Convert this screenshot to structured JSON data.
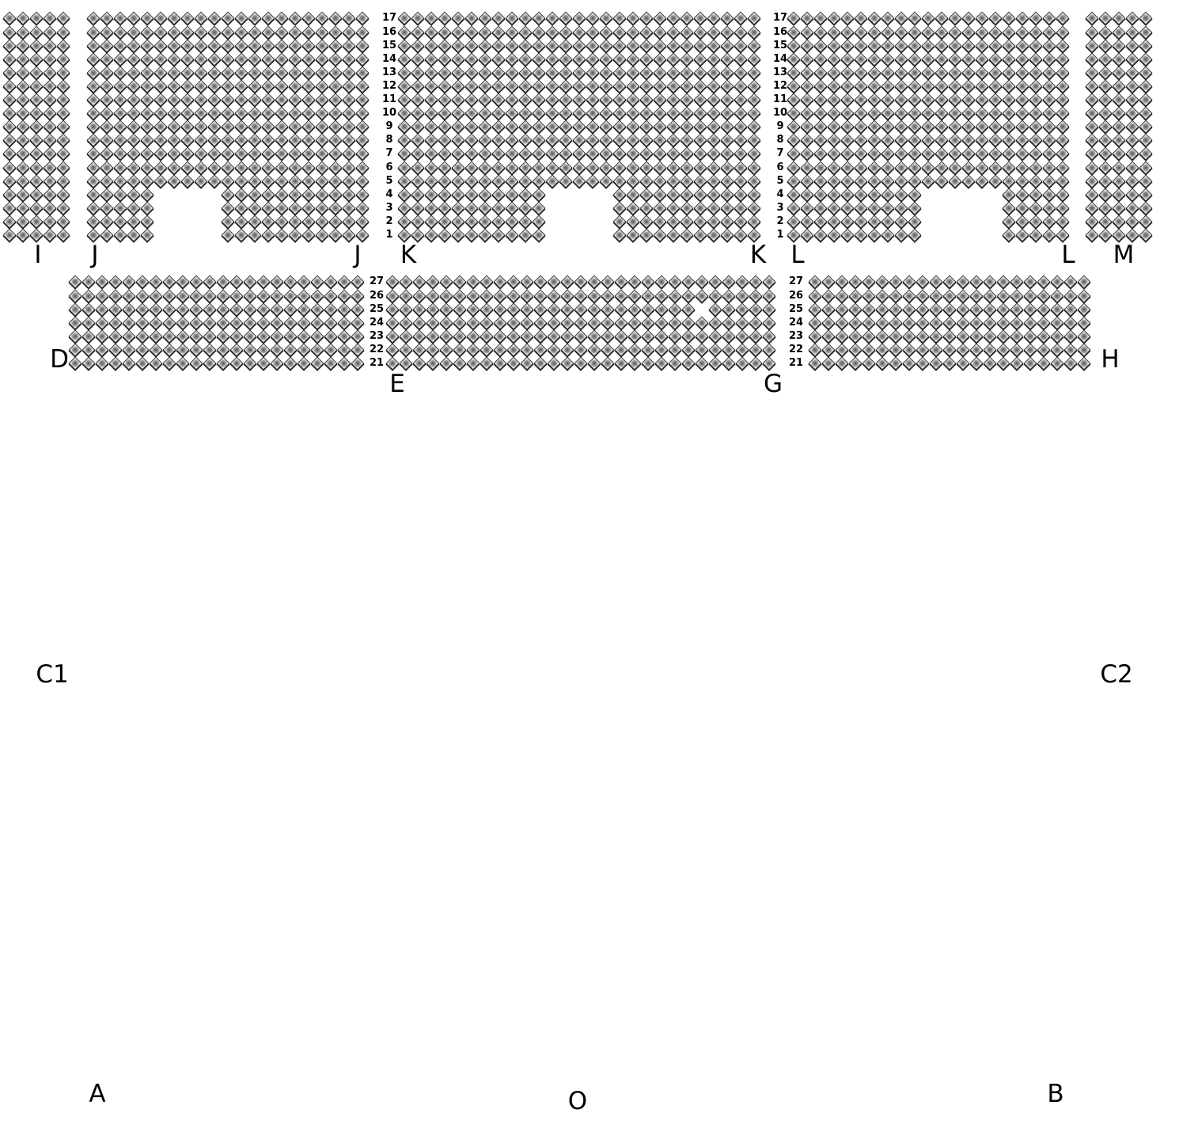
{
  "seat_icon": "diamond-seat-icon",
  "seat_color": "#8a8a8a",
  "upper_rows": [
    1,
    2,
    3,
    4,
    5,
    6,
    7,
    8,
    9,
    10,
    11,
    12,
    13,
    14,
    15,
    16,
    17
  ],
  "lower_rows": [
    21,
    22,
    23,
    24,
    25,
    26,
    27
  ],
  "upper_row_labels": [
    "1",
    "2",
    "3",
    "4",
    "5",
    "6",
    "7",
    "8",
    "9",
    "10",
    "11",
    "12",
    "13",
    "14",
    "15",
    "16",
    "17"
  ],
  "lower_row_labels": [
    "21",
    "22",
    "23",
    "24",
    "25",
    "26",
    "27"
  ],
  "seat_blocks": [
    {
      "section": "I",
      "rows": "upper",
      "seats_per_row": 5,
      "missing": []
    },
    {
      "section": "J",
      "rows": "upper",
      "seats_per_row": 21,
      "missing": [
        {
          "rows": [
            1,
            2,
            3,
            4
          ],
          "seats": [
            6,
            7,
            8,
            9,
            10
          ]
        }
      ]
    },
    {
      "section": "K",
      "rows": "upper",
      "seats_per_row": 27,
      "missing": [
        {
          "rows": [
            1,
            2,
            3,
            4
          ],
          "seats": [
            12,
            13,
            14,
            15,
            16
          ]
        }
      ]
    },
    {
      "section": "L",
      "rows": "upper",
      "seats_per_row": 21,
      "missing": [
        {
          "rows": [
            1,
            2,
            3,
            4
          ],
          "seats": [
            11,
            12,
            13,
            14,
            15,
            16
          ]
        }
      ]
    },
    {
      "section": "M",
      "rows": "upper",
      "seats_per_row": 5,
      "missing": []
    },
    {
      "section": "D",
      "rows": "lower",
      "seats_per_row": 22,
      "missing": []
    },
    {
      "section": "E-G",
      "rows": "lower",
      "seats_per_row": 29,
      "missing": [
        {
          "rows": [
            25
          ],
          "seats": [
            24
          ]
        }
      ]
    },
    {
      "section": "H",
      "rows": "lower",
      "seats_per_row": 21,
      "missing": []
    }
  ],
  "section_labels": [
    "I",
    "J",
    "J",
    "K",
    "K",
    "L",
    "L",
    "M",
    "D",
    "E",
    "G",
    "H",
    "C1",
    "C2",
    "A",
    "O",
    "B"
  ]
}
